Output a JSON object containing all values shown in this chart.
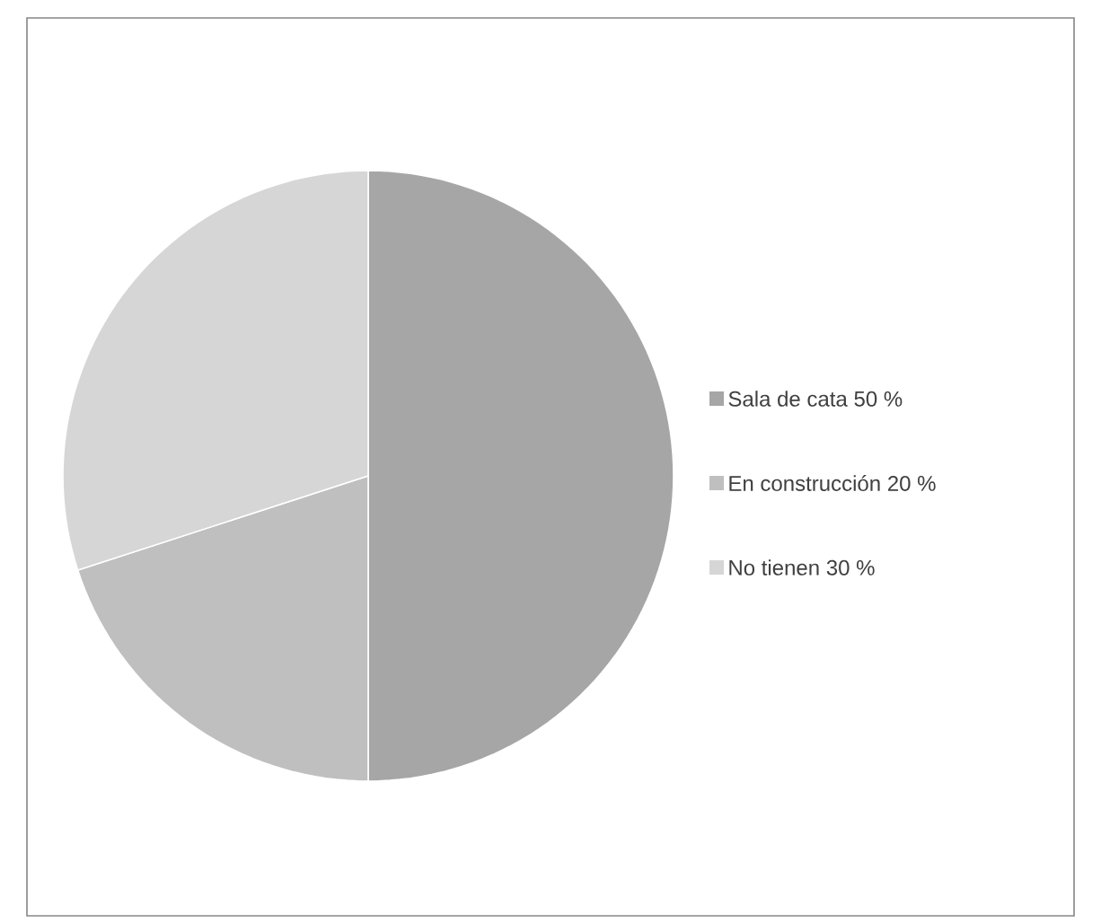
{
  "chart_data": {
    "type": "pie",
    "categories": [
      "Sala de cata",
      "En construcción",
      "No tienen"
    ],
    "values": [
      50,
      20,
      30
    ],
    "value_labels": [
      "50 %",
      "20 %",
      "30 %"
    ],
    "colors": [
      "#a6a6a6",
      "#bfbfbf",
      "#d6d6d6"
    ],
    "legend": "right"
  }
}
